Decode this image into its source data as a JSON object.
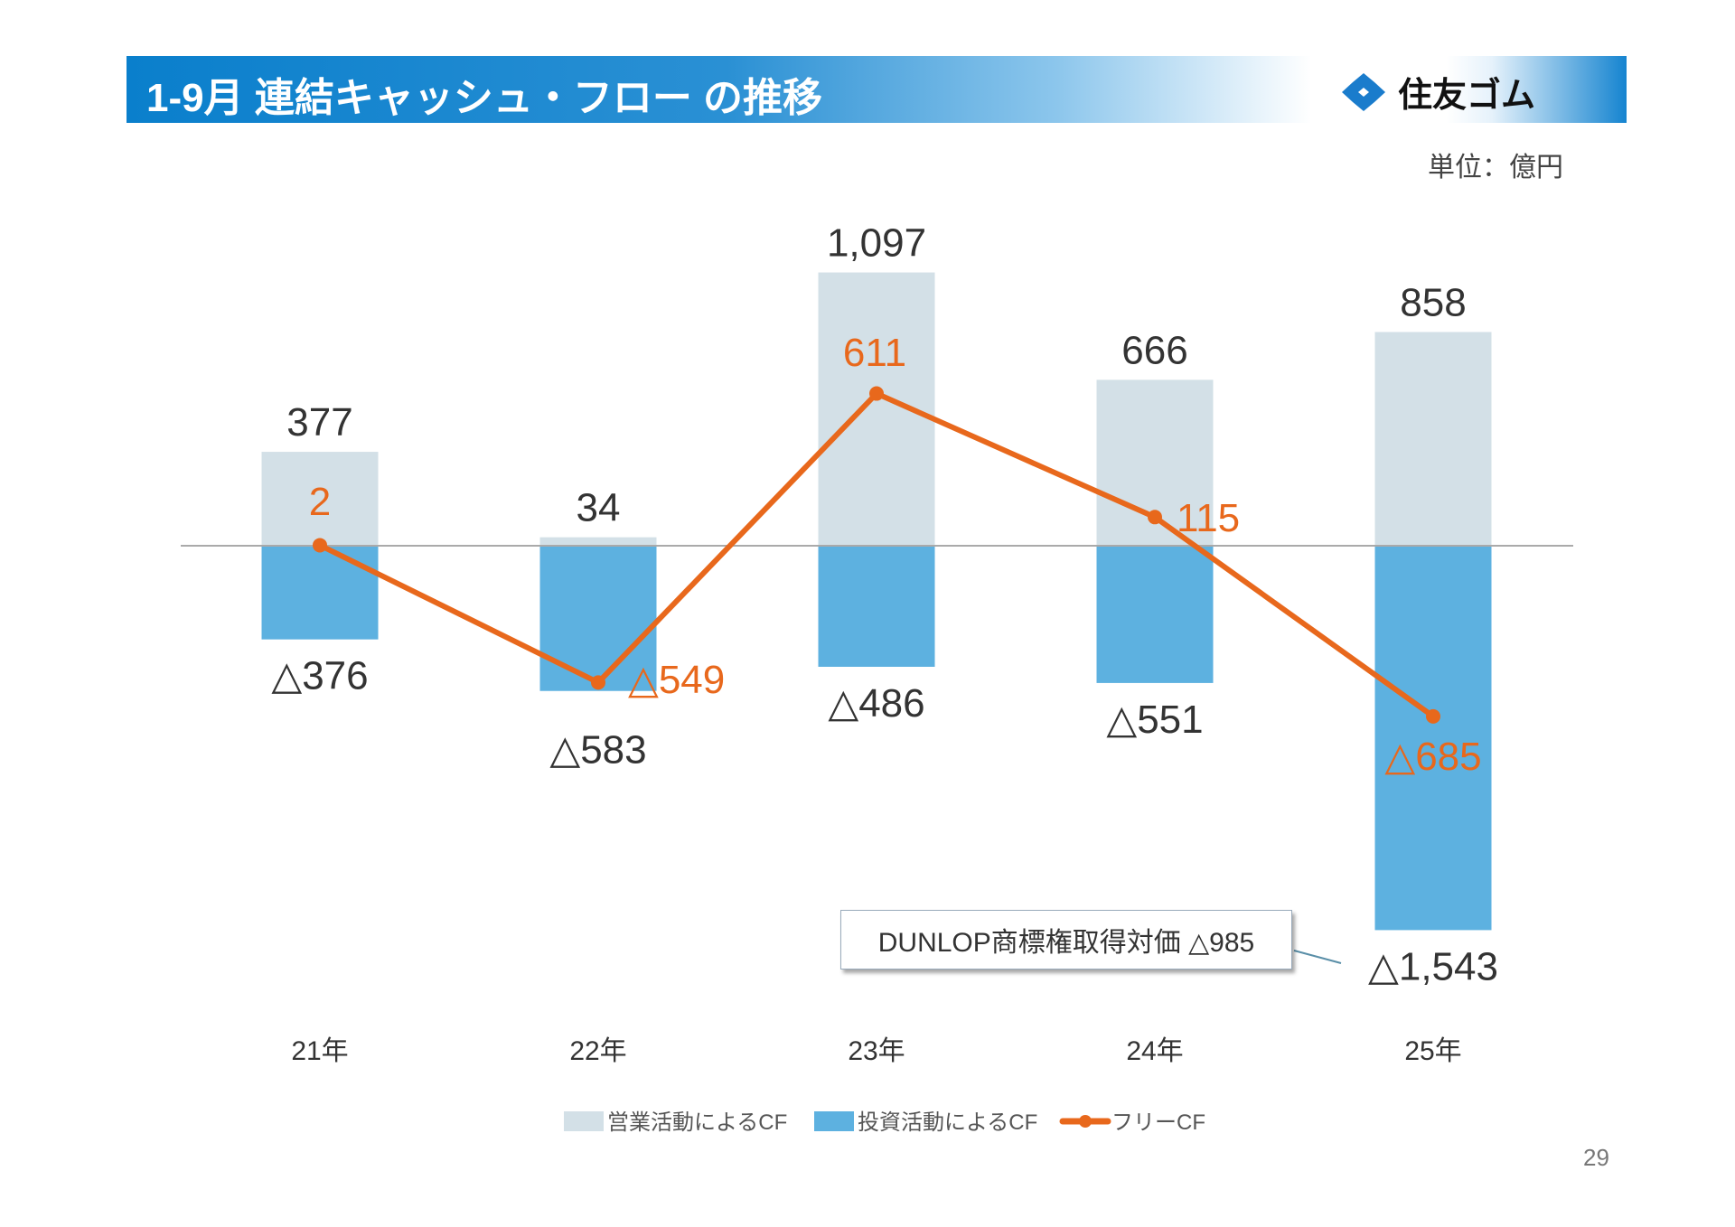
{
  "header": {
    "title": "1-9月 連結キャッシュ・フロー の推移",
    "logo_text": "住友ゴム"
  },
  "unit_label": "単位：億円",
  "page_number": "29",
  "callout": "DUNLOP商標権取得対価 △985",
  "colors": {
    "operating": "#d3e0e7",
    "investing": "#5db1e0",
    "free": "#e8681c",
    "title_bar": "#0a7fcc"
  },
  "chart_data": {
    "type": "bar",
    "categories": [
      "21年",
      "22年",
      "23年",
      "24年",
      "25年"
    ],
    "series": [
      {
        "name": "営業活動によるCF",
        "kind": "bar",
        "values": [
          377,
          34,
          1097,
          666,
          858
        ],
        "labels": [
          "377",
          "34",
          "1,097",
          "666",
          "858"
        ]
      },
      {
        "name": "投資活動によるCF",
        "kind": "bar",
        "values": [
          -376,
          -583,
          -486,
          -551,
          -1543
        ],
        "labels": [
          "△376",
          "△583",
          "△486",
          "△551",
          "△1,543"
        ]
      },
      {
        "name": "フリーCF",
        "kind": "line",
        "values": [
          2,
          -549,
          611,
          115,
          -685
        ],
        "labels": [
          "2",
          "△549",
          "611",
          "115",
          "△685"
        ]
      }
    ],
    "legend": "bottom",
    "grid": false
  }
}
